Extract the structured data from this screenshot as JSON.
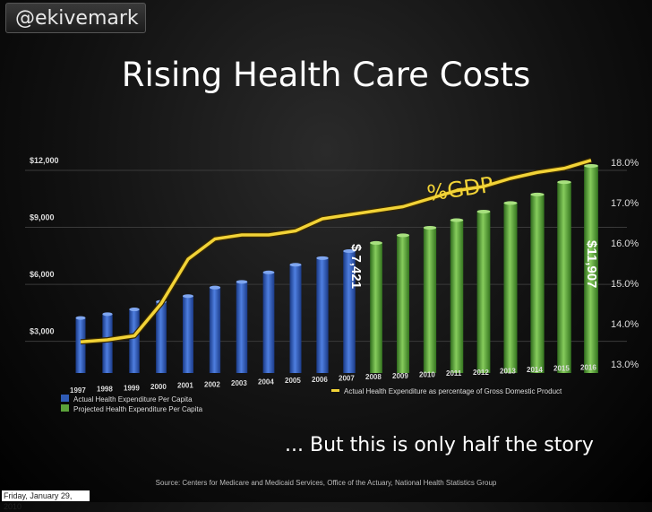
{
  "handle": "@ekivemark",
  "footer_date": "Friday, January 29, 2010",
  "subtitle": "... But this is only half the story",
  "source": "Source: Centers for Medicare and Medicaid Services, Office of the Actuary, National Health Statistics Group",
  "colors": {
    "actual": "#2f5bb5",
    "projected": "#5ba23a",
    "gdp_line": "#f2d337"
  },
  "chart_data": {
    "type": "bar",
    "title": "Rising Health Care Costs",
    "categories": [
      "1997",
      "1998",
      "1999",
      "2000",
      "2001",
      "2002",
      "2003",
      "2004",
      "2005",
      "2006",
      "2007",
      "2008",
      "2009",
      "2010",
      "2011",
      "2012",
      "2013",
      "2014",
      "2015",
      "2016"
    ],
    "series": [
      {
        "name": "Actual Health Expenditure Per Capita",
        "values": [
          3900,
          4100,
          4350,
          4750,
          5050,
          5500,
          5800,
          6300,
          6700,
          7050,
          7421,
          null,
          null,
          null,
          null,
          null,
          null,
          null,
          null,
          null
        ]
      },
      {
        "name": "Projected Health Expenditure Per Capita",
        "values": [
          null,
          null,
          null,
          null,
          null,
          null,
          null,
          null,
          null,
          null,
          null,
          7850,
          8250,
          8650,
          9050,
          9500,
          9950,
          10400,
          11050,
          11907
        ]
      },
      {
        "name": "Actual Health Expenditure as percentage of Gross Domestic Product",
        "axis": "right",
        "values": [
          13.55,
          13.6,
          13.7,
          14.5,
          15.6,
          16.1,
          16.2,
          16.2,
          16.3,
          16.6,
          16.7,
          16.8,
          16.9,
          17.1,
          17.3,
          17.4,
          17.6,
          17.75,
          17.85,
          18.05
        ]
      }
    ],
    "y_left": {
      "ticks": [
        "$3,000",
        "$6,000",
        "$9,000",
        "$12,000"
      ],
      "tick_values": [
        3000,
        6000,
        9000,
        12000
      ]
    },
    "y_right": {
      "ticks": [
        "13.0%",
        "14.0%",
        "15.0%",
        "16.0%",
        "17.0%",
        "18.0%"
      ],
      "tick_values": [
        13,
        14,
        15,
        16,
        17,
        18
      ]
    },
    "annotations": [
      {
        "text": "%GDP"
      },
      {
        "text": "$ 7,421"
      },
      {
        "text": "$11,907"
      }
    ],
    "grid": true
  }
}
